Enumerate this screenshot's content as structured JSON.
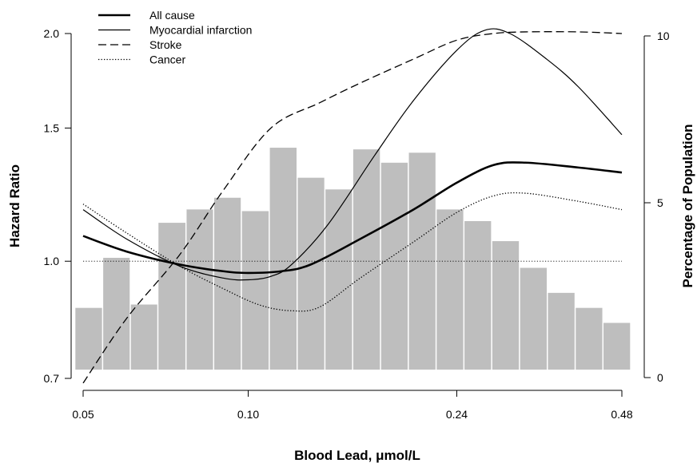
{
  "chart_data": {
    "type": "line",
    "xlabel": "Blood Lead, μmol/L",
    "ylabel": "Hazard Ratio",
    "y2label": "Percentage of Population",
    "x_scale": "log",
    "y_scale": "log",
    "xlim": [
      0.05,
      0.48
    ],
    "ylim": [
      0.7,
      2.0
    ],
    "y2lim": [
      0,
      10
    ],
    "x_ticks": [
      {
        "value": 0.05,
        "label": "0.05"
      },
      {
        "value": 0.1,
        "label": "0.10"
      },
      {
        "value": 0.24,
        "label": "0.24"
      },
      {
        "value": 0.48,
        "label": "0.48"
      }
    ],
    "y_ticks": [
      {
        "value": 0.7,
        "label": "0.7"
      },
      {
        "value": 1.0,
        "label": "1.0"
      },
      {
        "value": 1.5,
        "label": "1.5"
      },
      {
        "value": 2.0,
        "label": "2.0"
      }
    ],
    "y2_ticks": [
      {
        "value": 0,
        "label": "0"
      },
      {
        "value": 5,
        "label": "5"
      },
      {
        "value": 10,
        "label": "10"
      }
    ],
    "reference_line": 1.0,
    "legend_position": "top-left",
    "histogram": {
      "bin_edges": [
        0.0484,
        0.0544,
        0.0611,
        0.0686,
        0.0772,
        0.0867,
        0.0974,
        0.1095,
        0.1231,
        0.1383,
        0.1554,
        0.1747,
        0.1963,
        0.2206,
        0.2479,
        0.2786,
        0.3131,
        0.3519,
        0.3955,
        0.4444,
        0.4994
      ],
      "values": [
        1.85,
        3.35,
        1.95,
        4.4,
        4.8,
        5.15,
        4.75,
        6.65,
        5.75,
        5.4,
        6.6,
        6.2,
        6.5,
        4.8,
        4.45,
        3.85,
        3.05,
        2.3,
        1.85,
        1.4
      ],
      "color": "#bebebe"
    },
    "series": [
      {
        "name": "All cause",
        "style": "solid-thick",
        "x": [
          0.05,
          0.06,
          0.075,
          0.09,
          0.1,
          0.115,
          0.13,
          0.16,
          0.2,
          0.24,
          0.28,
          0.32,
          0.4,
          0.48
        ],
        "y": [
          1.08,
          1.03,
          0.99,
          0.97,
          0.965,
          0.97,
          0.99,
          1.07,
          1.17,
          1.27,
          1.34,
          1.35,
          1.33,
          1.31
        ]
      },
      {
        "name": "Myocardial infarction",
        "style": "solid-thin",
        "x": [
          0.05,
          0.06,
          0.075,
          0.09,
          0.1,
          0.11,
          0.12,
          0.14,
          0.17,
          0.2,
          0.24,
          0.27,
          0.3,
          0.35,
          0.4,
          0.48
        ],
        "y": [
          1.17,
          1.07,
          0.985,
          0.95,
          0.945,
          0.955,
          0.99,
          1.12,
          1.38,
          1.63,
          1.9,
          2.02,
          2.0,
          1.85,
          1.7,
          1.47
        ]
      },
      {
        "name": "Stroke",
        "style": "dashed",
        "x": [
          0.05,
          0.06,
          0.075,
          0.09,
          0.11,
          0.135,
          0.16,
          0.2,
          0.24,
          0.28,
          0.32,
          0.4,
          0.48
        ],
        "y": [
          0.69,
          0.84,
          1.02,
          1.24,
          1.5,
          1.62,
          1.72,
          1.85,
          1.96,
          2.0,
          2.01,
          2.01,
          2.0
        ]
      },
      {
        "name": "Cancer",
        "style": "dotted",
        "x": [
          0.05,
          0.06,
          0.075,
          0.09,
          0.105,
          0.12,
          0.135,
          0.16,
          0.2,
          0.24,
          0.28,
          0.32,
          0.4,
          0.48
        ],
        "y": [
          1.19,
          1.09,
          0.985,
          0.92,
          0.875,
          0.86,
          0.87,
          0.95,
          1.06,
          1.16,
          1.22,
          1.23,
          1.2,
          1.17
        ]
      }
    ]
  }
}
